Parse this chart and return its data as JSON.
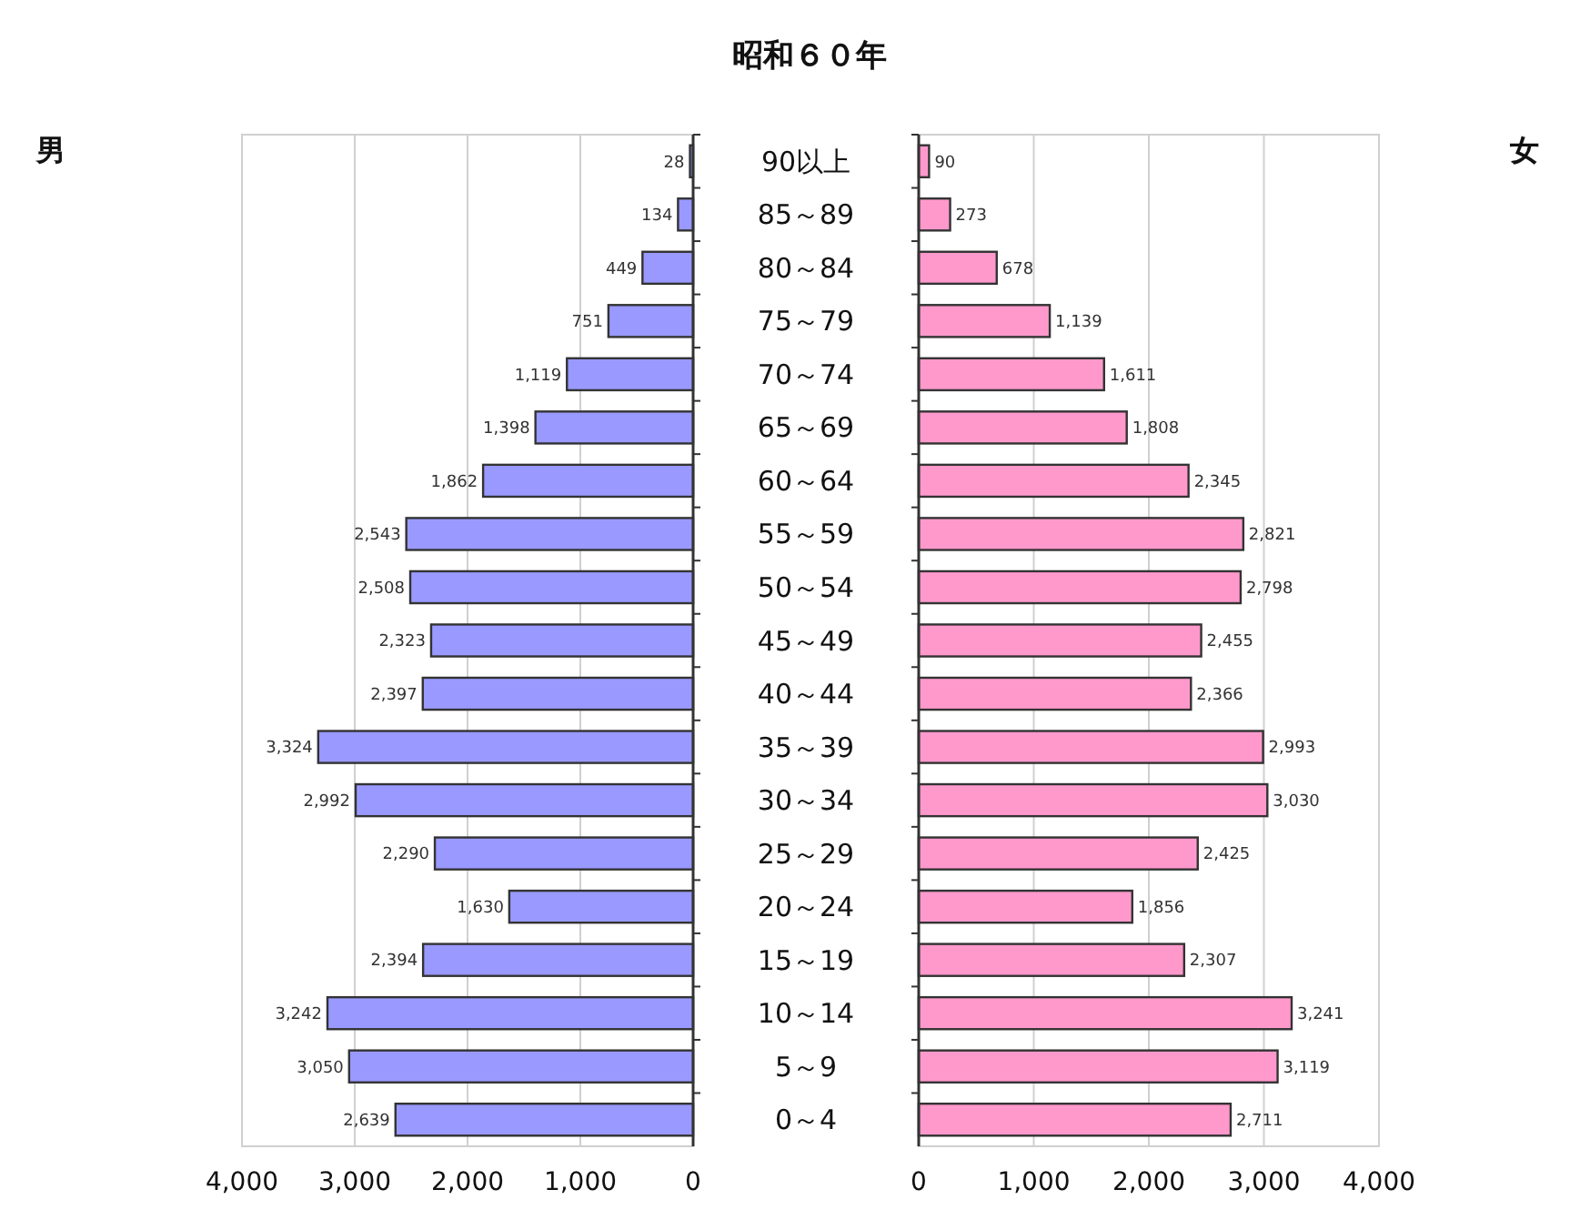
{
  "chart_data": [
    {
      "type": "bar",
      "orientation": "horizontal",
      "title": "昭和６０年",
      "ylabel": "男",
      "categories": [
        "90以上",
        "85～89",
        "80～84",
        "75～79",
        "70～74",
        "65～69",
        "60～64",
        "55～59",
        "50～54",
        "45～49",
        "40～44",
        "35～39",
        "30～34",
        "25～29",
        "20～24",
        "15～19",
        "10～14",
        "5～9",
        "0～4"
      ],
      "values": [
        28,
        134,
        449,
        751,
        1119,
        1398,
        1862,
        2543,
        2508,
        2323,
        2397,
        3324,
        2992,
        2290,
        1630,
        2394,
        3242,
        3050,
        2639
      ],
      "value_labels": [
        "28",
        "134",
        "449",
        "751",
        "1,119",
        "1,398",
        "1,862",
        "2,543",
        "2,508",
        "2,323",
        "2,397",
        "3,324",
        "2,992",
        "2,290",
        "1,630",
        "2,394",
        "3,242",
        "3,050",
        "2,639"
      ],
      "color": "#9999ff",
      "xlim": [
        4000,
        0
      ],
      "xticks": [
        {
          "value": 4000,
          "label": "4,000"
        },
        {
          "value": 3000,
          "label": "3,000"
        },
        {
          "value": 2000,
          "label": "2,000"
        },
        {
          "value": 1000,
          "label": "1,000"
        },
        0
      ],
      "grid": "x"
    },
    {
      "type": "bar",
      "orientation": "horizontal",
      "ylabel": "女",
      "categories": [
        null,
        null,
        null,
        null,
        null,
        null,
        null,
        null,
        null,
        null,
        null,
        null,
        null,
        null,
        null,
        null,
        null,
        null,
        null
      ],
      "values": [
        90,
        273,
        678,
        1139,
        1611,
        1808,
        2345,
        2821,
        2798,
        2455,
        2366,
        2993,
        3030,
        2425,
        1856,
        2307,
        3241,
        3119,
        2711
      ],
      "value_labels": [
        "90",
        "273",
        "678",
        "1,139",
        "1,611",
        "1,808",
        "2,345",
        "2,821",
        "2,798",
        "2,455",
        "2,366",
        "2,993",
        "3,030",
        "2,425",
        "1,856",
        "2,307",
        "3,241",
        "3,119",
        "2,711"
      ],
      "color": "#ff99cc",
      "xlim": [
        0,
        4000
      ],
      "xticks": [
        0,
        {
          "value": 1000,
          "label": "1,000"
        },
        {
          "value": 2000,
          "label": "2,000"
        },
        {
          "value": 3000,
          "label": "3,000"
        },
        {
          "value": 4000,
          "label": "4,000"
        }
      ],
      "grid": "x"
    }
  ]
}
